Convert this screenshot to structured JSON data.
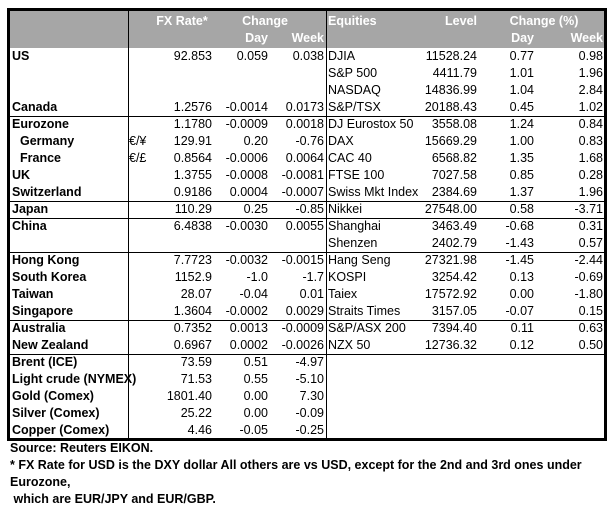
{
  "header": {
    "fx_rate": "FX Rate*",
    "change": "Change",
    "day": "Day",
    "week": "Week",
    "equities": "Equities",
    "level": "Level",
    "change_pct": "Change (%)",
    "eq_day": "Day",
    "eq_week": "Week"
  },
  "groups": [
    {
      "rows": [
        {
          "name": "US",
          "sym": "",
          "rate": "92.853",
          "day": "0.059",
          "week": "0.038",
          "eq": "DJIA",
          "level": "11528.24",
          "eq_day": "0.77",
          "eq_week": "0.98"
        },
        {
          "name": "",
          "sym": "",
          "rate": "",
          "day": "",
          "week": "",
          "eq": "S&P 500",
          "level": "4411.79",
          "eq_day": "1.01",
          "eq_week": "1.96"
        },
        {
          "name": "",
          "sym": "",
          "rate": "",
          "day": "",
          "week": "",
          "eq": "NASDAQ",
          "level": "14836.99",
          "eq_day": "1.04",
          "eq_week": "2.84"
        },
        {
          "name": "Canada",
          "sym": "",
          "rate": "1.2576",
          "day": "-0.0014",
          "week": "0.0173",
          "eq": "S&P/TSX",
          "level": "20188.43",
          "eq_day": "0.45",
          "eq_week": "1.02"
        }
      ]
    },
    {
      "rows": [
        {
          "name": "Eurozone",
          "sym": "",
          "rate": "1.1780",
          "day": "-0.0009",
          "week": "0.0018",
          "eq": "DJ Eurostox 50",
          "level": "3558.08",
          "eq_day": "1.24",
          "eq_week": "0.84"
        },
        {
          "name": "Germany",
          "indent": true,
          "sym": "€/¥",
          "rate": "129.91",
          "day": "0.20",
          "week": "-0.76",
          "eq": "DAX",
          "level": "15669.29",
          "eq_day": "1.00",
          "eq_week": "0.83"
        },
        {
          "name": "France",
          "indent": true,
          "sym": "€/£",
          "rate": "0.8564",
          "day": "-0.0006",
          "week": "0.0064",
          "eq": "CAC 40",
          "level": "6568.82",
          "eq_day": "1.35",
          "eq_week": "1.68"
        },
        {
          "name": "UK",
          "sym": "",
          "rate": "1.3755",
          "day": "-0.0008",
          "week": "-0.0081",
          "eq": "FTSE 100",
          "level": "7027.58",
          "eq_day": "0.85",
          "eq_week": "0.28"
        },
        {
          "name": "Switzerland",
          "sym": "",
          "rate": "0.9186",
          "day": "0.0004",
          "week": "-0.0007",
          "eq": "Swiss Mkt Index",
          "level": "2384.69",
          "eq_day": "1.37",
          "eq_week": "1.96"
        }
      ]
    },
    {
      "rows": [
        {
          "name": "Japan",
          "sym": "",
          "rate": "110.29",
          "day": "0.25",
          "week": "-0.85",
          "eq": "Nikkei",
          "level": "27548.00",
          "eq_day": "0.58",
          "eq_week": "-3.71"
        }
      ]
    },
    {
      "rows": [
        {
          "name": "China",
          "sym": "",
          "rate": "6.4838",
          "day": "-0.0030",
          "week": "0.0055",
          "eq": "Shanghai",
          "level": "3463.49",
          "eq_day": "-0.68",
          "eq_week": "0.31"
        },
        {
          "name": "",
          "sym": "",
          "rate": "",
          "day": "",
          "week": "",
          "eq": "Shenzen",
          "level": "2402.79",
          "eq_day": "-1.43",
          "eq_week": "0.57"
        }
      ]
    },
    {
      "rows": [
        {
          "name": "Hong Kong",
          "sym": "",
          "rate": "7.7723",
          "day": "-0.0032",
          "week": "-0.0015",
          "eq": "Hang Seng",
          "level": "27321.98",
          "eq_day": "-1.45",
          "eq_week": "-2.44"
        },
        {
          "name": "South Korea",
          "sym": "",
          "rate": "1152.9",
          "day": "-1.0",
          "week": "-1.7",
          "eq": "KOSPI",
          "level": "3254.42",
          "eq_day": "0.13",
          "eq_week": "-0.69"
        },
        {
          "name": "Taiwan",
          "sym": "",
          "rate": "28.07",
          "day": "-0.04",
          "week": "0.01",
          "eq": "Taiex",
          "level": "17572.92",
          "eq_day": "0.00",
          "eq_week": "-1.80"
        },
        {
          "name": "Singapore",
          "sym": "",
          "rate": "1.3604",
          "day": "-0.0002",
          "week": "0.0029",
          "eq": "Straits Times",
          "level": "3157.05",
          "eq_day": "-0.07",
          "eq_week": "0.15"
        }
      ]
    },
    {
      "rows": [
        {
          "name": "Australia",
          "sym": "",
          "rate": "0.7352",
          "day": "0.0013",
          "week": "-0.0009",
          "eq": "S&P/ASX  200",
          "level": "7394.40",
          "eq_day": "0.11",
          "eq_week": "0.63"
        },
        {
          "name": "New Zealand",
          "sym": "",
          "rate": "0.6967",
          "day": "0.0002",
          "week": "-0.0026",
          "eq": "NZX 50",
          "level": "12736.32",
          "eq_day": "0.12",
          "eq_week": "0.50"
        }
      ]
    },
    {
      "rows": [
        {
          "name": "Brent (ICE)",
          "sym": "",
          "rate": "73.59",
          "day": "0.51",
          "week": "-4.97",
          "eq": "",
          "level": "",
          "eq_day": "",
          "eq_week": ""
        },
        {
          "name": "Light crude (NYMEX)",
          "sym": "",
          "rate": "71.53",
          "day": "0.55",
          "week": "-5.10",
          "eq": "",
          "level": "",
          "eq_day": "",
          "eq_week": ""
        },
        {
          "name": "Gold (Comex)",
          "sym": "",
          "rate": "1801.40",
          "day": "0.00",
          "week": "7.30",
          "eq": "",
          "level": "",
          "eq_day": "",
          "eq_week": ""
        },
        {
          "name": "Silver (Comex)",
          "sym": "",
          "rate": "25.22",
          "day": "0.00",
          "week": "-0.09",
          "eq": "",
          "level": "",
          "eq_day": "",
          "eq_week": ""
        },
        {
          "name": "Copper (Comex)",
          "sym": "",
          "rate": "4.46",
          "day": "-0.05",
          "week": "-0.25",
          "eq": "",
          "level": "",
          "eq_day": "",
          "eq_week": ""
        }
      ]
    }
  ],
  "footer": {
    "source": "Source:  Reuters EIKON.",
    "note_1": "* FX Rate for USD is the DXY dollar  All others are vs USD, except for the 2nd and 3rd ones under Eurozone,",
    "note_2": " which are EUR/JPY and EUR/GBP."
  }
}
